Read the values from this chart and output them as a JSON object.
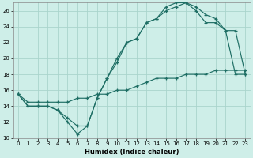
{
  "xlabel": "Humidex (Indice chaleur)",
  "xlim": [
    -0.5,
    23.5
  ],
  "ylim": [
    10,
    27
  ],
  "yticks": [
    10,
    12,
    14,
    16,
    18,
    20,
    22,
    24,
    26
  ],
  "xticks": [
    0,
    1,
    2,
    3,
    4,
    5,
    6,
    7,
    8,
    9,
    10,
    11,
    12,
    13,
    14,
    15,
    16,
    17,
    18,
    19,
    20,
    21,
    22,
    23
  ],
  "bg_color": "#ceeee8",
  "grid_color": "#aad4cc",
  "line_color": "#1e6e64",
  "line1_y": [
    15.5,
    14.0,
    14.0,
    14.0,
    13.5,
    12.5,
    11.5,
    11.5,
    15.0,
    17.5,
    20.0,
    22.0,
    22.5,
    24.5,
    25.0,
    26.5,
    27.0,
    27.0,
    26.5,
    25.5,
    25.0,
    23.5,
    23.5,
    18.0
  ],
  "line2_y": [
    15.5,
    14.0,
    14.0,
    14.0,
    13.5,
    12.0,
    10.5,
    11.5,
    15.0,
    17.5,
    19.5,
    22.0,
    22.5,
    24.5,
    25.0,
    26.0,
    26.5,
    27.0,
    26.0,
    24.5,
    24.5,
    23.5,
    18.0,
    18.0
  ],
  "line3_y": [
    15.5,
    14.5,
    14.5,
    14.5,
    14.5,
    14.5,
    15.0,
    15.0,
    15.5,
    15.5,
    16.0,
    16.0,
    16.5,
    17.0,
    17.5,
    17.5,
    17.5,
    18.0,
    18.0,
    18.0,
    18.5,
    18.5,
    18.5,
    18.5
  ]
}
